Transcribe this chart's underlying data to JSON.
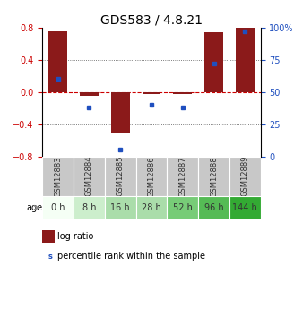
{
  "title": "GDS583 / 4.8.21",
  "samples": [
    "GSM12883",
    "GSM12884",
    "GSM12885",
    "GSM12886",
    "GSM12887",
    "GSM12888",
    "GSM12889"
  ],
  "ages": [
    "0 h",
    "8 h",
    "16 h",
    "28 h",
    "52 h",
    "96 h",
    "144 h"
  ],
  "log_ratio": [
    0.755,
    -0.05,
    -0.5,
    -0.02,
    -0.02,
    0.745,
    0.8
  ],
  "percentile": [
    60,
    38,
    5,
    40,
    38,
    72,
    97
  ],
  "bar_color": "#8B1A1A",
  "dot_color": "#1F4FBF",
  "ylim_left": [
    -0.8,
    0.8
  ],
  "ylim_right": [
    0,
    100
  ],
  "yticks_left": [
    -0.8,
    -0.4,
    0.0,
    0.4,
    0.8
  ],
  "yticks_right": [
    0,
    25,
    50,
    75,
    100
  ],
  "ytick_labels_right": [
    "0",
    "25",
    "50",
    "75",
    "100%"
  ],
  "age_bg_colors": [
    "#f5fff5",
    "#cceecc",
    "#aaddaa",
    "#aaddaa",
    "#77cc77",
    "#55bb55",
    "#33aa33"
  ],
  "sample_bg_color": "#c8c8c8",
  "zero_line_color": "#cc0000",
  "dot_line_color": "#000000",
  "title_fontsize": 10,
  "tick_fontsize": 7,
  "sample_fontsize": 6,
  "age_fontsize": 7,
  "legend_fontsize": 7
}
